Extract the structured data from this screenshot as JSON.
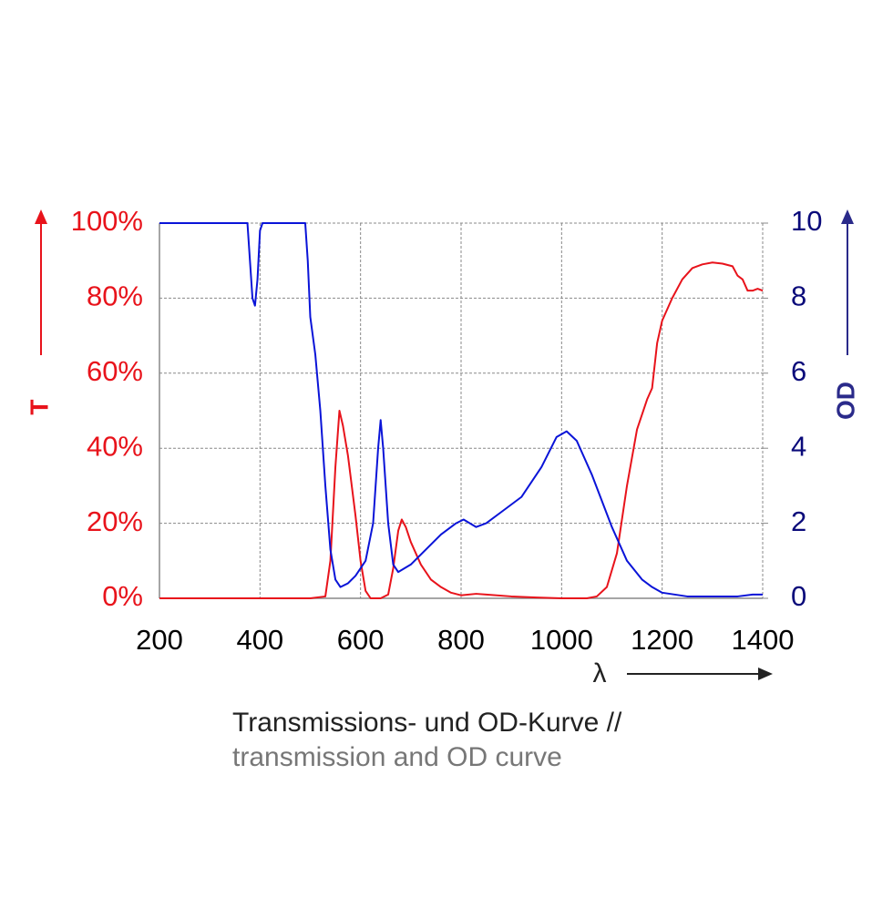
{
  "chart_data": {
    "type": "line",
    "xlabel": "λ",
    "ylabel": "T",
    "y2label": "OD",
    "caption": [
      "Transmissions- und OD-Kurve //",
      "transmission and OD curve"
    ],
    "xlim": [
      200,
      1400
    ],
    "xticks": [
      200,
      400,
      600,
      800,
      1000,
      1200,
      1400
    ],
    "ylim": [
      0,
      100
    ],
    "yticks": [
      {
        "value": 0,
        "label": "0%"
      },
      {
        "value": 20,
        "label": "20%"
      },
      {
        "value": 40,
        "label": "40%"
      },
      {
        "value": 60,
        "label": "60%"
      },
      {
        "value": 80,
        "label": "80%"
      },
      {
        "value": 100,
        "label": "100%"
      }
    ],
    "y2lim": [
      0,
      10
    ],
    "y2ticks": [
      0,
      2,
      4,
      6,
      8,
      10
    ],
    "grid": true,
    "series": [
      {
        "name": "T",
        "color": "#e8131b",
        "x": [
          200,
          500,
          530,
          540,
          550,
          558,
          565,
          575,
          590,
          600,
          610,
          620,
          640,
          655,
          665,
          675,
          682,
          690,
          700,
          720,
          740,
          760,
          780,
          800,
          830,
          850,
          900,
          950,
          1000,
          1050,
          1070,
          1090,
          1110,
          1130,
          1150,
          1170,
          1180,
          1190,
          1200,
          1220,
          1240,
          1260,
          1280,
          1300,
          1320,
          1340,
          1350,
          1360,
          1370,
          1380,
          1390,
          1400
        ],
        "values": [
          0,
          0,
          0.5,
          10,
          35,
          50,
          46,
          38,
          22,
          10,
          2,
          0,
          0,
          1,
          8,
          18,
          21,
          19,
          15,
          9,
          5,
          3,
          1.5,
          0.8,
          1.2,
          1,
          0.5,
          0.2,
          0,
          0,
          0.5,
          3,
          12,
          30,
          45,
          53,
          56,
          68,
          74,
          80,
          85,
          88,
          89,
          89.5,
          89.2,
          88.5,
          86,
          85,
          82,
          82,
          82.5,
          82
        ]
      },
      {
        "name": "OD",
        "color": "#0a14d8",
        "axis": "y2",
        "x": [
          200,
          375,
          380,
          385,
          390,
          395,
          400,
          405,
          490,
          495,
          500,
          510,
          520,
          530,
          540,
          550,
          560,
          575,
          590,
          610,
          625,
          635,
          640,
          645,
          655,
          665,
          675,
          700,
          730,
          760,
          790,
          805,
          830,
          850,
          880,
          920,
          960,
          990,
          1010,
          1030,
          1060,
          1100,
          1130,
          1160,
          1180,
          1200,
          1250,
          1300,
          1350,
          1380,
          1400
        ],
        "values": [
          10,
          10,
          9,
          8,
          7.8,
          8.5,
          9.8,
          10,
          10,
          9,
          7.5,
          6.5,
          5,
          3,
          1.3,
          0.5,
          0.3,
          0.4,
          0.6,
          1,
          2,
          4,
          4.75,
          4,
          2,
          0.9,
          0.7,
          0.9,
          1.3,
          1.7,
          2,
          2.1,
          1.9,
          2,
          2.3,
          2.7,
          3.5,
          4.3,
          4.45,
          4.2,
          3.3,
          1.9,
          1,
          0.5,
          0.3,
          0.15,
          0.05,
          0.05,
          0.05,
          0.1,
          0.1
        ]
      }
    ]
  }
}
